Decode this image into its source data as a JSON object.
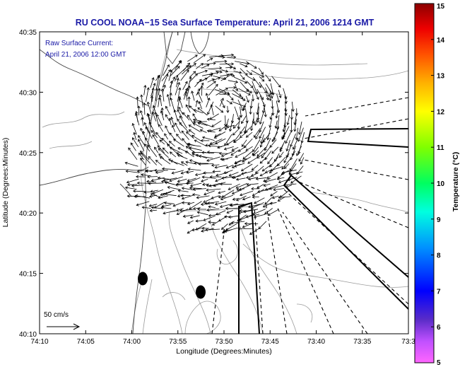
{
  "chart_data": {
    "type": "other",
    "title": "RU COOL  NOAA−15  Sea Surface Temperature:  April 21, 2006 1214 GMT",
    "annotation_lines": [
      "Raw Surface Current:",
      "April 21, 2006 12:00 GMT"
    ],
    "scale_label": "50 cm/s",
    "xlabel": "Longitude (Degrees:Minutes)",
    "ylabel": "Latitude (Degrees:Minutes)",
    "x_ticks": [
      "74:10",
      "74:05",
      "74:00",
      "73:55",
      "73:50",
      "73:45",
      "73:40",
      "73:35",
      "73:3"
    ],
    "y_ticks": [
      "40:35",
      "40:30",
      "40:25",
      "40:20",
      "40:15",
      "40:10"
    ],
    "xlim_minutes_west": [
      10,
      30
    ],
    "ylim_minutes_north": [
      10,
      35
    ],
    "colorbar": {
      "label": "Temperature (°C)",
      "ticks": [
        "15",
        "14",
        "13",
        "12",
        "11",
        "10",
        "9",
        "8",
        "7",
        "6",
        "5"
      ],
      "range": [
        5,
        15
      ]
    },
    "markers": [
      {
        "name": "dot-1",
        "lon_min_w": 28.9,
        "lat_min_n": 14.6
      },
      {
        "name": "dot-2",
        "lon_min_w": 27.3,
        "lat_min_n": 13.5
      }
    ]
  }
}
